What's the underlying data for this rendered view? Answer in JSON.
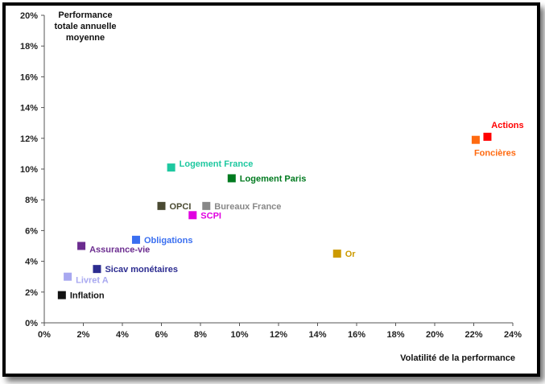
{
  "chart_data": {
    "type": "scatter",
    "title": "",
    "ylabel_lines": [
      "Performance",
      "totale annuelle",
      "moyenne"
    ],
    "xlabel": "Volatilité de la performance",
    "xlim": [
      0,
      24
    ],
    "ylim": [
      0,
      20
    ],
    "x_ticks": [
      0,
      2,
      4,
      6,
      8,
      10,
      12,
      14,
      16,
      18,
      20,
      22,
      24
    ],
    "y_ticks": [
      0,
      2,
      4,
      6,
      8,
      10,
      12,
      14,
      16,
      18,
      20
    ],
    "x_tick_labels": [
      "0%",
      "2%",
      "4%",
      "6%",
      "8%",
      "10%",
      "12%",
      "14%",
      "16%",
      "18%",
      "20%",
      "22%",
      "24%"
    ],
    "y_tick_labels": [
      "0%",
      "2%",
      "4%",
      "6%",
      "8%",
      "10%",
      "12%",
      "14%",
      "16%",
      "18%",
      "20%"
    ],
    "grid": false,
    "points": [
      {
        "label": "Actions",
        "x": 22.7,
        "y": 12.1,
        "color": "#ff0000",
        "label_pos": "above"
      },
      {
        "label": "Foncières",
        "x": 22.1,
        "y": 11.9,
        "color": "#ff6a10",
        "label_pos": "below"
      },
      {
        "label": "Logement France",
        "x": 6.5,
        "y": 10.1,
        "color": "#1ec8a0",
        "label_pos": "right-up"
      },
      {
        "label": "Logement Paris",
        "x": 9.6,
        "y": 9.4,
        "color": "#007a1f",
        "label_pos": "right"
      },
      {
        "label": "OPCI",
        "x": 6.0,
        "y": 7.6,
        "color": "#4a4a32",
        "label_pos": "right"
      },
      {
        "label": "Bureaux France",
        "x": 8.3,
        "y": 7.6,
        "color": "#888888",
        "label_pos": "right"
      },
      {
        "label": "SCPI",
        "x": 7.6,
        "y": 7.0,
        "color": "#e000e0",
        "label_pos": "right"
      },
      {
        "label": "Obligations",
        "x": 4.7,
        "y": 5.4,
        "color": "#3a6ff0",
        "label_pos": "right"
      },
      {
        "label": "Assurance-vie",
        "x": 1.9,
        "y": 5.0,
        "color": "#6b2c8f",
        "label_pos": "right-down"
      },
      {
        "label": "Or",
        "x": 15.0,
        "y": 4.5,
        "color": "#cc9a00",
        "label_pos": "right"
      },
      {
        "label": "Sicav monétaires",
        "x": 2.7,
        "y": 3.5,
        "color": "#2c2c90",
        "label_pos": "right"
      },
      {
        "label": "Livret A",
        "x": 1.2,
        "y": 3.0,
        "color": "#a8a8f0",
        "label_pos": "right-down"
      },
      {
        "label": "Inflation",
        "x": 0.9,
        "y": 1.8,
        "color": "#111111",
        "label_pos": "right"
      }
    ]
  }
}
